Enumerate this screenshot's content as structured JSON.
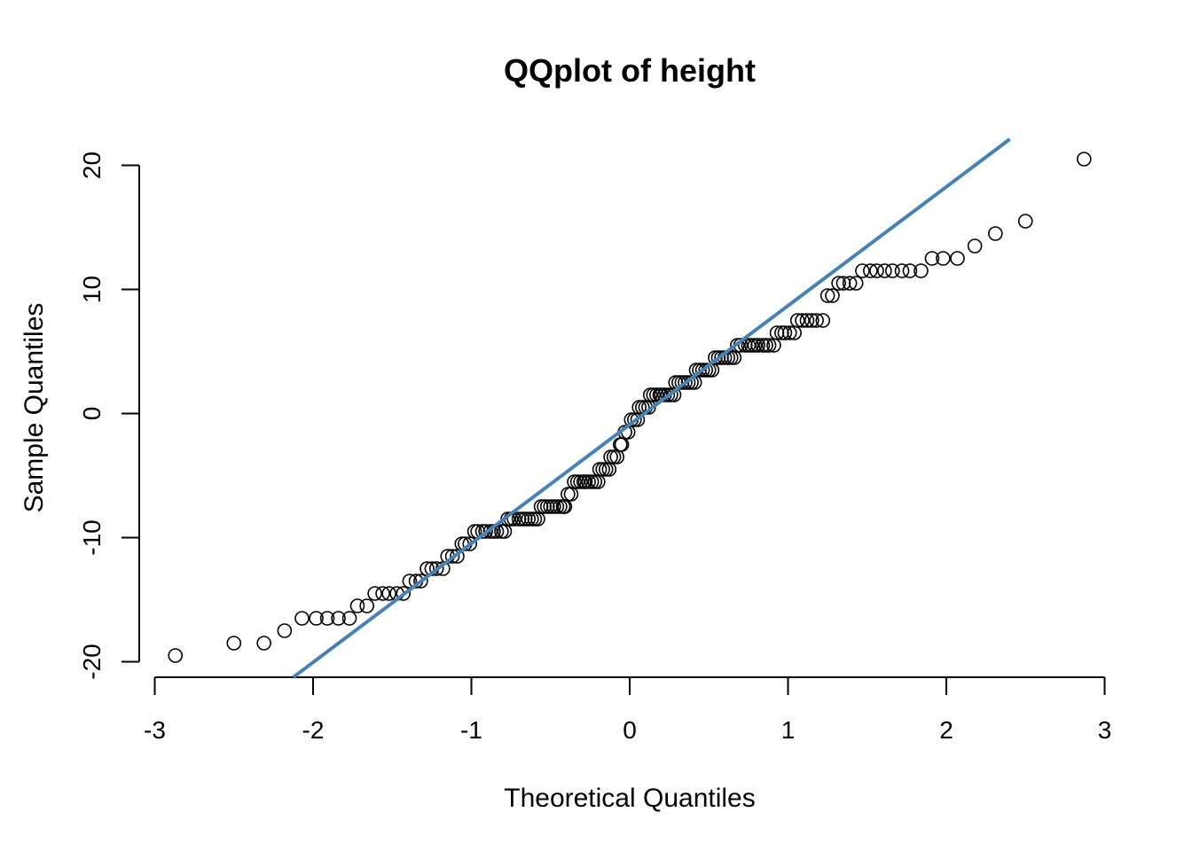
{
  "chart_data": {
    "type": "scatter",
    "title": "QQplot of height",
    "xlabel": "Theoretical Quantiles",
    "ylabel": "Sample Quantiles",
    "xlim": [
      -3,
      3
    ],
    "ylim": [
      -20,
      20
    ],
    "xticks": [
      -3,
      -2,
      -1,
      0,
      1,
      2,
      3
    ],
    "yticks": [
      -20,
      -10,
      0,
      10,
      20
    ],
    "grid": false,
    "legend": "none",
    "point_color": "#000000",
    "reference_line": {
      "color": "#4682B4",
      "x": [
        -2.12,
        2.4
      ],
      "y": [
        -21.2,
        22.1
      ]
    },
    "points": [
      {
        "x": -2.87,
        "y": -19.5
      },
      {
        "x": -2.5,
        "y": -18.5
      },
      {
        "x": -2.31,
        "y": -18.5
      },
      {
        "x": -2.18,
        "y": -17.5
      },
      {
        "x": -2.07,
        "y": -16.5
      },
      {
        "x": -1.98,
        "y": -16.5
      },
      {
        "x": -1.91,
        "y": -16.5
      },
      {
        "x": -1.84,
        "y": -16.5
      },
      {
        "x": -1.77,
        "y": -16.5
      },
      {
        "x": -1.72,
        "y": -15.5
      },
      {
        "x": -1.66,
        "y": -15.5
      },
      {
        "x": -1.61,
        "y": -14.5
      },
      {
        "x": -1.56,
        "y": -14.5
      },
      {
        "x": -1.52,
        "y": -14.5
      },
      {
        "x": -1.47,
        "y": -14.5
      },
      {
        "x": -1.43,
        "y": -14.5
      },
      {
        "x": -1.39,
        "y": -13.5
      },
      {
        "x": -1.35,
        "y": -13.5
      },
      {
        "x": -1.32,
        "y": -13.5
      },
      {
        "x": -1.28,
        "y": -12.5
      },
      {
        "x": -1.25,
        "y": -12.5
      },
      {
        "x": -1.22,
        "y": -12.5
      },
      {
        "x": -1.18,
        "y": -12.5
      },
      {
        "x": -1.15,
        "y": -11.5
      },
      {
        "x": -1.12,
        "y": -11.5
      },
      {
        "x": -1.09,
        "y": -11.5
      },
      {
        "x": -1.06,
        "y": -10.5
      },
      {
        "x": -1.04,
        "y": -10.5
      },
      {
        "x": -1.01,
        "y": -10.5
      },
      {
        "x": -0.98,
        "y": -9.5
      },
      {
        "x": -0.96,
        "y": -9.5
      },
      {
        "x": -0.93,
        "y": -9.5
      },
      {
        "x": -0.91,
        "y": -9.5
      },
      {
        "x": -0.88,
        "y": -9.5
      },
      {
        "x": -0.86,
        "y": -9.5
      },
      {
        "x": -0.84,
        "y": -9.5
      },
      {
        "x": -0.81,
        "y": -9.5
      },
      {
        "x": -0.79,
        "y": -9.5
      },
      {
        "x": -0.77,
        "y": -8.5
      },
      {
        "x": -0.75,
        "y": -8.5
      },
      {
        "x": -0.73,
        "y": -8.5
      },
      {
        "x": -0.7,
        "y": -8.5
      },
      {
        "x": -0.68,
        "y": -8.5
      },
      {
        "x": -0.66,
        "y": -8.5
      },
      {
        "x": -0.64,
        "y": -8.5
      },
      {
        "x": -0.62,
        "y": -8.5
      },
      {
        "x": -0.6,
        "y": -8.5
      },
      {
        "x": -0.58,
        "y": -8.5
      },
      {
        "x": -0.56,
        "y": -7.5
      },
      {
        "x": -0.54,
        "y": -7.5
      },
      {
        "x": -0.52,
        "y": -7.5
      },
      {
        "x": -0.5,
        "y": -7.5
      },
      {
        "x": -0.48,
        "y": -7.5
      },
      {
        "x": -0.46,
        "y": -7.5
      },
      {
        "x": -0.44,
        "y": -7.5
      },
      {
        "x": -0.42,
        "y": -7.5
      },
      {
        "x": -0.41,
        "y": -7.5
      },
      {
        "x": -0.39,
        "y": -6.5
      },
      {
        "x": -0.37,
        "y": -6.5
      },
      {
        "x": -0.35,
        "y": -5.5
      },
      {
        "x": -0.33,
        "y": -5.5
      },
      {
        "x": -0.31,
        "y": -5.5
      },
      {
        "x": -0.29,
        "y": -5.5
      },
      {
        "x": -0.28,
        "y": -5.5
      },
      {
        "x": -0.26,
        "y": -5.5
      },
      {
        "x": -0.24,
        "y": -5.5
      },
      {
        "x": -0.22,
        "y": -5.5
      },
      {
        "x": -0.2,
        "y": -5.5
      },
      {
        "x": -0.19,
        "y": -4.5
      },
      {
        "x": -0.17,
        "y": -4.5
      },
      {
        "x": -0.15,
        "y": -4.5
      },
      {
        "x": -0.13,
        "y": -4.5
      },
      {
        "x": -0.12,
        "y": -3.5
      },
      {
        "x": -0.1,
        "y": -3.5
      },
      {
        "x": -0.08,
        "y": -3.5
      },
      {
        "x": -0.06,
        "y": -2.5
      },
      {
        "x": -0.05,
        "y": -2.5
      },
      {
        "x": -0.03,
        "y": -1.5
      },
      {
        "x": -0.01,
        "y": -1.5
      },
      {
        "x": 0.01,
        "y": -0.5
      },
      {
        "x": 0.03,
        "y": -0.5
      },
      {
        "x": 0.05,
        "y": -0.5
      },
      {
        "x": 0.06,
        "y": 0.5
      },
      {
        "x": 0.08,
        "y": 0.5
      },
      {
        "x": 0.1,
        "y": 0.5
      },
      {
        "x": 0.12,
        "y": 0.5
      },
      {
        "x": 0.13,
        "y": 1.5
      },
      {
        "x": 0.15,
        "y": 1.5
      },
      {
        "x": 0.17,
        "y": 1.5
      },
      {
        "x": 0.19,
        "y": 1.5
      },
      {
        "x": 0.2,
        "y": 1.5
      },
      {
        "x": 0.22,
        "y": 1.5
      },
      {
        "x": 0.24,
        "y": 1.5
      },
      {
        "x": 0.26,
        "y": 1.5
      },
      {
        "x": 0.28,
        "y": 1.5
      },
      {
        "x": 0.29,
        "y": 2.5
      },
      {
        "x": 0.31,
        "y": 2.5
      },
      {
        "x": 0.33,
        "y": 2.5
      },
      {
        "x": 0.35,
        "y": 2.5
      },
      {
        "x": 0.37,
        "y": 2.5
      },
      {
        "x": 0.39,
        "y": 2.5
      },
      {
        "x": 0.41,
        "y": 2.5
      },
      {
        "x": 0.42,
        "y": 3.5
      },
      {
        "x": 0.44,
        "y": 3.5
      },
      {
        "x": 0.46,
        "y": 3.5
      },
      {
        "x": 0.48,
        "y": 3.5
      },
      {
        "x": 0.5,
        "y": 3.5
      },
      {
        "x": 0.52,
        "y": 3.5
      },
      {
        "x": 0.54,
        "y": 4.5
      },
      {
        "x": 0.56,
        "y": 4.5
      },
      {
        "x": 0.58,
        "y": 4.5
      },
      {
        "x": 0.6,
        "y": 4.5
      },
      {
        "x": 0.62,
        "y": 4.5
      },
      {
        "x": 0.64,
        "y": 4.5
      },
      {
        "x": 0.66,
        "y": 4.5
      },
      {
        "x": 0.68,
        "y": 5.5
      },
      {
        "x": 0.7,
        "y": 5.5
      },
      {
        "x": 0.73,
        "y": 5.5
      },
      {
        "x": 0.75,
        "y": 5.5
      },
      {
        "x": 0.77,
        "y": 5.5
      },
      {
        "x": 0.79,
        "y": 5.5
      },
      {
        "x": 0.81,
        "y": 5.5
      },
      {
        "x": 0.84,
        "y": 5.5
      },
      {
        "x": 0.86,
        "y": 5.5
      },
      {
        "x": 0.88,
        "y": 5.5
      },
      {
        "x": 0.91,
        "y": 5.5
      },
      {
        "x": 0.93,
        "y": 6.5
      },
      {
        "x": 0.96,
        "y": 6.5
      },
      {
        "x": 0.98,
        "y": 6.5
      },
      {
        "x": 1.01,
        "y": 6.5
      },
      {
        "x": 1.04,
        "y": 6.5
      },
      {
        "x": 1.06,
        "y": 7.5
      },
      {
        "x": 1.09,
        "y": 7.5
      },
      {
        "x": 1.12,
        "y": 7.5
      },
      {
        "x": 1.15,
        "y": 7.5
      },
      {
        "x": 1.18,
        "y": 7.5
      },
      {
        "x": 1.22,
        "y": 7.5
      },
      {
        "x": 1.25,
        "y": 9.5
      },
      {
        "x": 1.28,
        "y": 9.5
      },
      {
        "x": 1.32,
        "y": 10.5
      },
      {
        "x": 1.35,
        "y": 10.5
      },
      {
        "x": 1.39,
        "y": 10.5
      },
      {
        "x": 1.43,
        "y": 10.5
      },
      {
        "x": 1.47,
        "y": 11.5
      },
      {
        "x": 1.52,
        "y": 11.5
      },
      {
        "x": 1.56,
        "y": 11.5
      },
      {
        "x": 1.61,
        "y": 11.5
      },
      {
        "x": 1.66,
        "y": 11.5
      },
      {
        "x": 1.72,
        "y": 11.5
      },
      {
        "x": 1.77,
        "y": 11.5
      },
      {
        "x": 1.84,
        "y": 11.5
      },
      {
        "x": 1.91,
        "y": 12.5
      },
      {
        "x": 1.98,
        "y": 12.5
      },
      {
        "x": 2.07,
        "y": 12.5
      },
      {
        "x": 2.18,
        "y": 13.5
      },
      {
        "x": 2.31,
        "y": 14.5
      },
      {
        "x": 2.5,
        "y": 15.5
      },
      {
        "x": 2.87,
        "y": 20.5
      }
    ]
  }
}
